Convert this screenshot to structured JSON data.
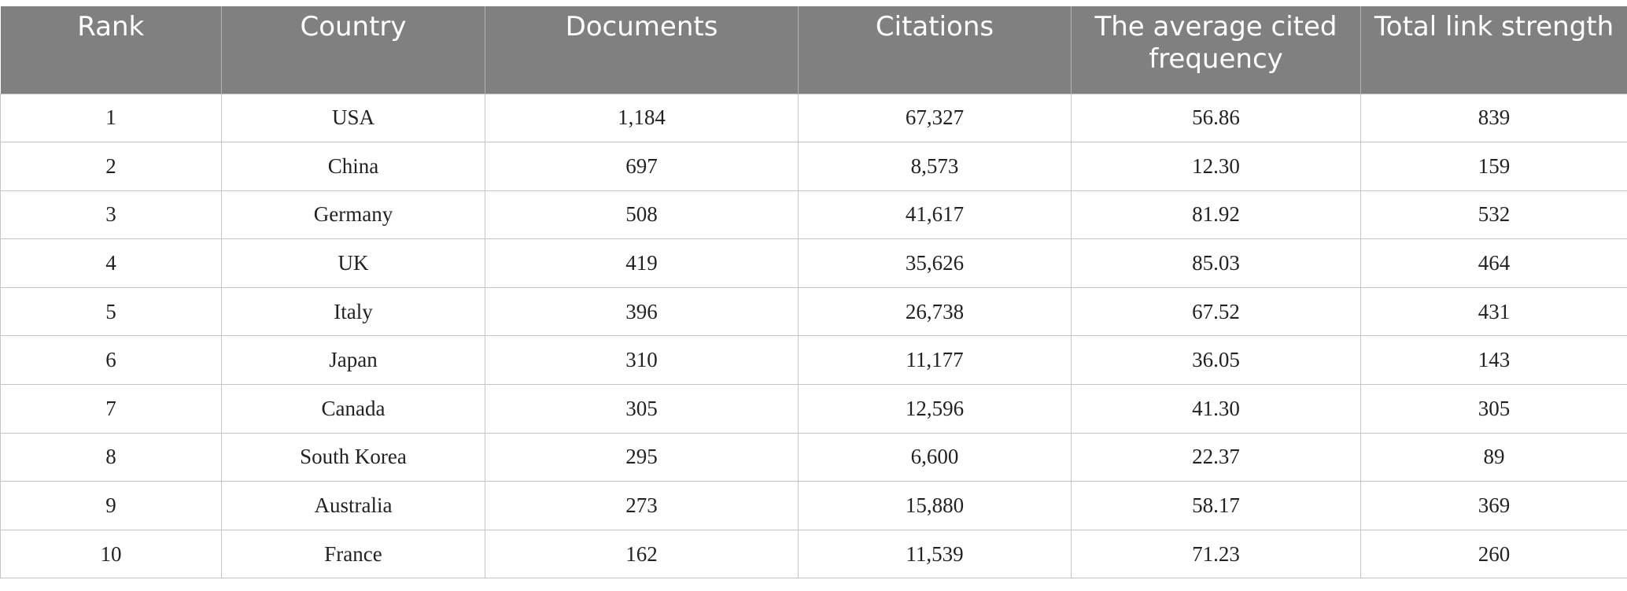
{
  "table": {
    "headers": [
      "Rank",
      "Country",
      "Documents",
      "Citations",
      "The average cited frequency",
      "Total link strength"
    ],
    "rows": [
      [
        "1",
        "USA",
        "1,184",
        "67,327",
        "56.86",
        "839"
      ],
      [
        "2",
        "China",
        "697",
        "8,573",
        "12.30",
        "159"
      ],
      [
        "3",
        "Germany",
        "508",
        "41,617",
        "81.92",
        "532"
      ],
      [
        "4",
        "UK",
        "419",
        "35,626",
        "85.03",
        "464"
      ],
      [
        "5",
        "Italy",
        "396",
        "26,738",
        "67.52",
        "431"
      ],
      [
        "6",
        "Japan",
        "310",
        "11,177",
        "36.05",
        "143"
      ],
      [
        "7",
        "Canada",
        "305",
        "12,596",
        "41.30",
        "305"
      ],
      [
        "8",
        "South Korea",
        "295",
        "6,600",
        "22.37",
        "89"
      ],
      [
        "9",
        "Australia",
        "273",
        "15,880",
        "58.17",
        "369"
      ],
      [
        "10",
        "France",
        "162",
        "11,539",
        "71.23",
        "260"
      ]
    ]
  },
  "colors": {
    "header_background": "#808080",
    "header_text": "#ffffff",
    "border": "#c4c4c4"
  }
}
